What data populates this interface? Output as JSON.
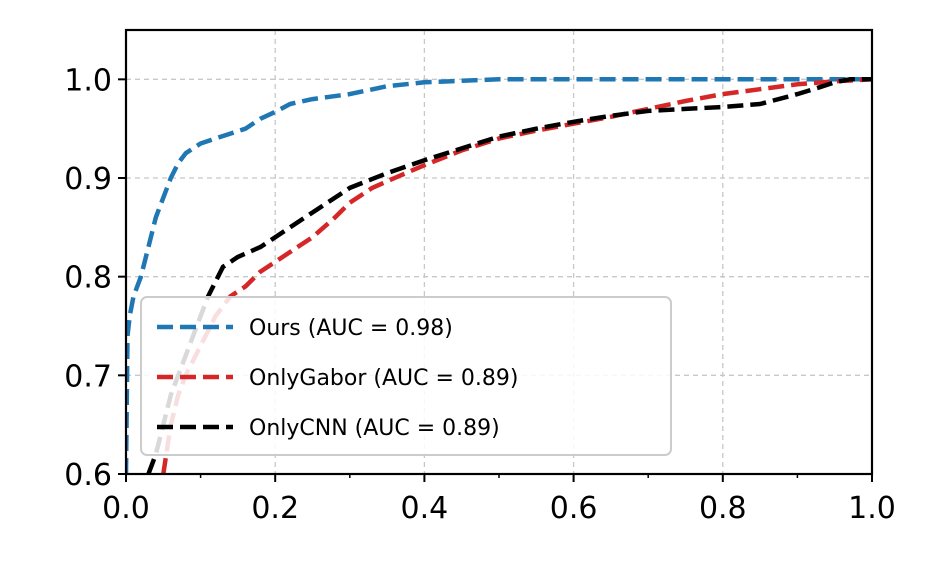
{
  "chart_data": {
    "type": "line",
    "title": "",
    "xlabel": "",
    "ylabel": "",
    "xlim": [
      0.0,
      1.0
    ],
    "ylim": [
      0.6,
      1.05
    ],
    "grid": true,
    "legend_position": "lower-left",
    "x_ticks": [
      "0.0",
      "0.2",
      "0.4",
      "0.6",
      "0.8",
      "1.0"
    ],
    "y_ticks": [
      "0.6",
      "0.7",
      "0.8",
      "0.9",
      "1.0"
    ],
    "series": [
      {
        "name": "Ours (AUC = 0.98)",
        "color": "#1f77b4",
        "x": [
          0.0,
          0.002,
          0.005,
          0.01,
          0.02,
          0.03,
          0.04,
          0.05,
          0.06,
          0.07,
          0.08,
          0.09,
          0.1,
          0.12,
          0.14,
          0.16,
          0.18,
          0.2,
          0.22,
          0.25,
          0.3,
          0.35,
          0.4,
          0.5,
          0.6,
          0.7,
          0.8,
          0.9,
          1.0
        ],
        "y": [
          0.6,
          0.74,
          0.76,
          0.78,
          0.8,
          0.83,
          0.86,
          0.88,
          0.9,
          0.915,
          0.925,
          0.93,
          0.935,
          0.94,
          0.945,
          0.95,
          0.96,
          0.967,
          0.975,
          0.98,
          0.985,
          0.993,
          0.997,
          1.0,
          1.0,
          1.0,
          1.0,
          1.0,
          1.0
        ]
      },
      {
        "name": "OnlyGabor (AUC = 0.89)",
        "color": "#d62728",
        "x": [
          0.05,
          0.06,
          0.07,
          0.08,
          0.1,
          0.12,
          0.14,
          0.16,
          0.18,
          0.2,
          0.22,
          0.25,
          0.28,
          0.3,
          0.33,
          0.36,
          0.4,
          0.45,
          0.5,
          0.55,
          0.6,
          0.65,
          0.7,
          0.75,
          0.8,
          0.85,
          0.9,
          0.95,
          1.0
        ],
        "y": [
          0.6,
          0.65,
          0.68,
          0.7,
          0.73,
          0.76,
          0.78,
          0.79,
          0.805,
          0.815,
          0.825,
          0.84,
          0.86,
          0.875,
          0.89,
          0.9,
          0.913,
          0.928,
          0.94,
          0.948,
          0.955,
          0.962,
          0.97,
          0.978,
          0.985,
          0.99,
          0.995,
          0.998,
          1.0
        ]
      },
      {
        "name": "OnlyCNN (AUC = 0.89)",
        "color": "#000000",
        "x": [
          0.03,
          0.04,
          0.05,
          0.06,
          0.07,
          0.08,
          0.09,
          0.1,
          0.11,
          0.12,
          0.13,
          0.15,
          0.18,
          0.2,
          0.25,
          0.3,
          0.35,
          0.4,
          0.45,
          0.5,
          0.55,
          0.6,
          0.65,
          0.7,
          0.75,
          0.8,
          0.85,
          0.9,
          0.93,
          0.95,
          0.97,
          1.0
        ],
        "y": [
          0.6,
          0.62,
          0.65,
          0.68,
          0.7,
          0.72,
          0.74,
          0.76,
          0.78,
          0.795,
          0.81,
          0.82,
          0.83,
          0.84,
          0.865,
          0.89,
          0.905,
          0.918,
          0.93,
          0.942,
          0.95,
          0.957,
          0.963,
          0.968,
          0.97,
          0.972,
          0.975,
          0.985,
          0.992,
          0.997,
          1.0,
          1.0
        ]
      }
    ]
  }
}
